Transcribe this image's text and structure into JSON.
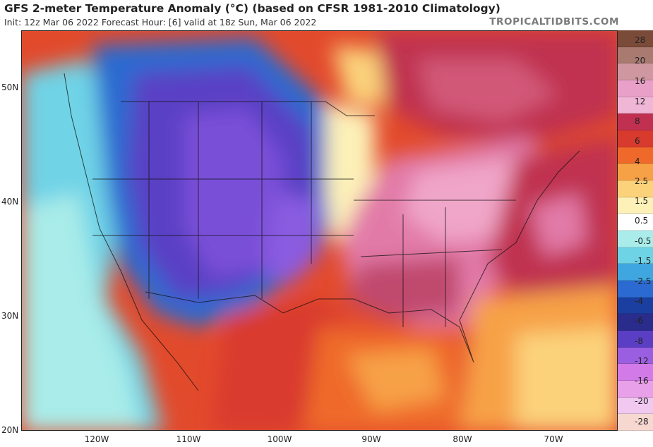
{
  "header": {
    "title": "GFS 2-meter Temperature Anomaly (°C) (based on CFSR 1981-2010 Climatology)",
    "subtitle": "Init: 12z Mar 06 2022   Forecast Hour: [6]   valid at 18z Sun, Mar 06 2022",
    "brand": "TROPICALTIDBITS.COM"
  },
  "axes": {
    "lat_labels": [
      "50N",
      "40N",
      "30N",
      "20N"
    ],
    "lon_labels": [
      "120W",
      "110W",
      "100W",
      "90W",
      "80W",
      "70W"
    ]
  },
  "colorbar": {
    "labels": [
      "28",
      "20",
      "16",
      "12",
      "8",
      "6",
      "4",
      "2.5",
      "1.5",
      "0.5",
      "-0.5",
      "-1.5",
      "-2.5",
      "-4",
      "-6",
      "-8",
      "-12",
      "-16",
      "-20",
      "-28"
    ],
    "colors": [
      "#7b4b3a",
      "#a87a70",
      "#cf97a0",
      "#e8a0c8",
      "#f0b6d6",
      "#c03050",
      "#d93a2e",
      "#ef6a2a",
      "#f7a146",
      "#fbd27a",
      "#fdf1b8",
      "#ffffff",
      "#a9ece9",
      "#6fd3e6",
      "#3fa6e0",
      "#2b6ad0",
      "#1b3fa0",
      "#2a2c8c",
      "#5a3fc4",
      "#9a5fe0",
      "#d27ae8",
      "#e8a0e8",
      "#f0c8f0",
      "#f6d8d0"
    ],
    "colors_note": "top-to-bottom cell colors"
  }
}
